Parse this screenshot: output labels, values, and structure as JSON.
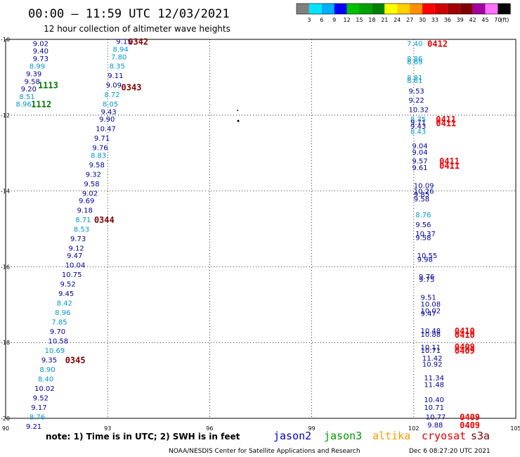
{
  "header": {
    "title": "00:00 – 11:59 UTC 12/03/2021",
    "subtitle": "12 hour collection of altimeter wave heights"
  },
  "color_scale": {
    "labels": [
      "3",
      "6",
      "9",
      "12",
      "15",
      "18",
      "21",
      "24",
      "27",
      "30",
      "33",
      "36",
      "39",
      "42",
      "45",
      "70",
      "(ft)"
    ],
    "colors": [
      "#808080",
      "#00e5ff",
      "#00b0ff",
      "#0000ff",
      "#00c000",
      "#00a000",
      "#008000",
      "#ffff00",
      "#ffd000",
      "#ff9000",
      "#ff0000",
      "#d00000",
      "#a00000",
      "#800000",
      "#a000a0",
      "#ff70ff",
      "#000000"
    ]
  },
  "footer": {
    "note": "note: 1) Time is in UTC; 2) SWH is in feet",
    "satellites": [
      {
        "name": "jason2",
        "color": "#0000cc"
      },
      {
        "name": "jason3",
        "color": "#009900"
      },
      {
        "name": "altika",
        "color": "#ff9900"
      },
      {
        "name": "cryosat",
        "color": "#e00000"
      },
      {
        "name": "s3a",
        "color": "#800000"
      }
    ],
    "credit": "NOAA/NESDIS Center for Satellite Applications and Research",
    "timestamp": "Dec  6 08:27:20 UTC 2021"
  },
  "chart_data": {
    "type": "scatter",
    "xlim": [
      90,
      105
    ],
    "ylim": [
      -20,
      -10
    ],
    "x_ticks": [
      90,
      93,
      96,
      99,
      102,
      105
    ],
    "x_tick_labels": [
      "90",
      "93",
      "96",
      "99",
      "102",
      "105"
    ],
    "y_ticks": [
      -10,
      -12,
      -14,
      -16,
      -18,
      -20
    ],
    "y_tick_labels": [
      "-10",
      "-12",
      "-14",
      "-16",
      "-18",
      "-20"
    ],
    "grid": true,
    "colors": {
      "blue": "#000099",
      "cyan": "#0099cc",
      "green": "#007700",
      "maroon": "#800000",
      "red": "#ee0000"
    },
    "wave_heights": [
      {
        "x": 90.8,
        "y": -10.1,
        "label": "9.02",
        "c": "blue"
      },
      {
        "x": 90.8,
        "y": -10.3,
        "label": "9.40",
        "c": "blue"
      },
      {
        "x": 90.8,
        "y": -10.5,
        "label": "9.73",
        "c": "blue"
      },
      {
        "x": 90.7,
        "y": -10.7,
        "label": "8.99",
        "c": "cyan"
      },
      {
        "x": 90.6,
        "y": -10.9,
        "label": "9.39",
        "c": "blue"
      },
      {
        "x": 90.55,
        "y": -11.1,
        "label": "9.58",
        "c": "blue"
      },
      {
        "x": 90.45,
        "y": -11.3,
        "label": "9.20",
        "c": "blue"
      },
      {
        "x": 90.4,
        "y": -11.5,
        "label": "8.51",
        "c": "cyan"
      },
      {
        "x": 90.3,
        "y": -11.7,
        "label": "8.96",
        "c": "cyan"
      },
      {
        "x": 93.25,
        "y": -10.05,
        "label": "9.15",
        "c": "blue"
      },
      {
        "x": 93.15,
        "y": -10.25,
        "label": "8.94",
        "c": "cyan"
      },
      {
        "x": 93.1,
        "y": -10.45,
        "label": "7.80",
        "c": "cyan"
      },
      {
        "x": 93.05,
        "y": -10.7,
        "label": "8.35",
        "c": "cyan"
      },
      {
        "x": 93.0,
        "y": -10.95,
        "label": "9.11",
        "c": "blue"
      },
      {
        "x": 92.95,
        "y": -11.2,
        "label": "9.09",
        "c": "blue"
      },
      {
        "x": 92.9,
        "y": -11.45,
        "label": "8.72",
        "c": "cyan"
      },
      {
        "x": 92.85,
        "y": -11.7,
        "label": "8.05",
        "c": "cyan"
      },
      {
        "x": 92.8,
        "y": -11.9,
        "label": "9.43",
        "c": "blue"
      },
      {
        "x": 92.75,
        "y": -12.1,
        "label": "9.90",
        "c": "blue"
      },
      {
        "x": 92.65,
        "y": -12.35,
        "label": "10.47",
        "c": "blue"
      },
      {
        "x": 92.6,
        "y": -12.6,
        "label": "9.71",
        "c": "blue"
      },
      {
        "x": 92.55,
        "y": -12.85,
        "label": "9.76",
        "c": "blue"
      },
      {
        "x": 92.5,
        "y": -13.05,
        "label": "8.83",
        "c": "cyan"
      },
      {
        "x": 92.45,
        "y": -13.3,
        "label": "9.58",
        "c": "blue"
      },
      {
        "x": 92.35,
        "y": -13.55,
        "label": "9.32",
        "c": "blue"
      },
      {
        "x": 92.3,
        "y": -13.8,
        "label": "9.58",
        "c": "blue"
      },
      {
        "x": 92.25,
        "y": -14.05,
        "label": "9.02",
        "c": "blue"
      },
      {
        "x": 92.15,
        "y": -14.25,
        "label": "9.69",
        "c": "blue"
      },
      {
        "x": 92.1,
        "y": -14.5,
        "label": "9.18",
        "c": "blue"
      },
      {
        "x": 92.05,
        "y": -14.75,
        "label": "8.71",
        "c": "cyan"
      },
      {
        "x": 92.0,
        "y": -15.0,
        "label": "8.53",
        "c": "cyan"
      },
      {
        "x": 91.9,
        "y": -15.25,
        "label": "9.73",
        "c": "blue"
      },
      {
        "x": 91.85,
        "y": -15.5,
        "label": "9.12",
        "c": "blue"
      },
      {
        "x": 91.8,
        "y": -15.7,
        "label": "9.47",
        "c": "blue"
      },
      {
        "x": 91.75,
        "y": -15.95,
        "label": "10.04",
        "c": "blue"
      },
      {
        "x": 91.65,
        "y": -16.2,
        "label": "10.75",
        "c": "blue"
      },
      {
        "x": 91.6,
        "y": -16.45,
        "label": "9.52",
        "c": "blue"
      },
      {
        "x": 91.55,
        "y": -16.7,
        "label": "9.45",
        "c": "blue"
      },
      {
        "x": 91.5,
        "y": -16.95,
        "label": "8.42",
        "c": "cyan"
      },
      {
        "x": 91.45,
        "y": -17.2,
        "label": "8.96",
        "c": "cyan"
      },
      {
        "x": 91.35,
        "y": -17.45,
        "label": "7.85",
        "c": "cyan"
      },
      {
        "x": 91.3,
        "y": -17.7,
        "label": "9.70",
        "c": "blue"
      },
      {
        "x": 91.25,
        "y": -17.95,
        "label": "10.58",
        "c": "blue"
      },
      {
        "x": 91.15,
        "y": -18.2,
        "label": "10.69",
        "c": "cyan"
      },
      {
        "x": 91.05,
        "y": -18.45,
        "label": "9.35",
        "c": "blue"
      },
      {
        "x": 91.0,
        "y": -18.7,
        "label": "8.90",
        "c": "cyan"
      },
      {
        "x": 90.95,
        "y": -18.95,
        "label": "8.40",
        "c": "cyan"
      },
      {
        "x": 90.85,
        "y": -19.2,
        "label": "10.02",
        "c": "blue"
      },
      {
        "x": 90.8,
        "y": -19.45,
        "label": "9.52",
        "c": "blue"
      },
      {
        "x": 90.75,
        "y": -19.7,
        "label": "9.17",
        "c": "blue"
      },
      {
        "x": 90.7,
        "y": -19.95,
        "label": "8.76",
        "c": "cyan"
      },
      {
        "x": 90.6,
        "y": -20.2,
        "label": "9.21",
        "c": "blue"
      },
      {
        "x": 101.8,
        "y": -10.1,
        "label": "7.40",
        "c": "cyan"
      },
      {
        "x": 101.8,
        "y": -10.5,
        "label": "8.86",
        "c": "cyan"
      },
      {
        "x": 101.8,
        "y": -10.58,
        "label": "8.69",
        "c": "cyan"
      },
      {
        "x": 101.8,
        "y": -11.0,
        "label": "8.81",
        "c": "cyan"
      },
      {
        "x": 101.8,
        "y": -11.08,
        "label": "8.61",
        "c": "cyan"
      },
      {
        "x": 101.85,
        "y": -11.35,
        "label": "9.53",
        "c": "blue"
      },
      {
        "x": 101.85,
        "y": -11.6,
        "label": "9.22",
        "c": "blue"
      },
      {
        "x": 101.85,
        "y": -11.85,
        "label": "10.32",
        "c": "blue"
      },
      {
        "x": 101.9,
        "y": -12.1,
        "label": "8.75",
        "c": "cyan"
      },
      {
        "x": 101.9,
        "y": -12.18,
        "label": "9.71",
        "c": "blue"
      },
      {
        "x": 101.9,
        "y": -12.28,
        "label": "9.43",
        "c": "blue"
      },
      {
        "x": 101.9,
        "y": -12.42,
        "label": "8.43",
        "c": "cyan"
      },
      {
        "x": 101.95,
        "y": -12.8,
        "label": "9.04",
        "c": "blue"
      },
      {
        "x": 101.95,
        "y": -12.97,
        "label": "9.04",
        "c": "blue"
      },
      {
        "x": 101.95,
        "y": -13.2,
        "label": "9.57",
        "c": "blue"
      },
      {
        "x": 101.95,
        "y": -13.38,
        "label": "9.61",
        "c": "blue"
      },
      {
        "x": 102.0,
        "y": -13.85,
        "label": "10.09",
        "c": "blue"
      },
      {
        "x": 102.0,
        "y": -14.0,
        "label": "10.26",
        "c": "blue"
      },
      {
        "x": 102.0,
        "y": -14.08,
        "label": "9.85",
        "c": "blue"
      },
      {
        "x": 102.0,
        "y": -14.2,
        "label": "9.58",
        "c": "blue"
      },
      {
        "x": 102.05,
        "y": -14.62,
        "label": "8.76",
        "c": "cyan"
      },
      {
        "x": 102.05,
        "y": -14.88,
        "label": "9.56",
        "c": "blue"
      },
      {
        "x": 102.05,
        "y": -15.12,
        "label": "10.37",
        "c": "blue"
      },
      {
        "x": 102.05,
        "y": -15.22,
        "label": "9.58",
        "c": "blue"
      },
      {
        "x": 102.1,
        "y": -15.7,
        "label": "10.55",
        "c": "blue"
      },
      {
        "x": 102.1,
        "y": -15.8,
        "label": "9.98",
        "c": "blue"
      },
      {
        "x": 102.15,
        "y": -16.25,
        "label": "9.76",
        "c": "blue"
      },
      {
        "x": 102.15,
        "y": -16.33,
        "label": "9.75",
        "c": "blue"
      },
      {
        "x": 102.2,
        "y": -16.8,
        "label": "9.51",
        "c": "blue"
      },
      {
        "x": 102.2,
        "y": -16.98,
        "label": "10.08",
        "c": "blue"
      },
      {
        "x": 102.2,
        "y": -17.15,
        "label": "10.02",
        "c": "blue"
      },
      {
        "x": 102.2,
        "y": -17.23,
        "label": "9.47",
        "c": "blue"
      },
      {
        "x": 102.2,
        "y": -17.68,
        "label": "10.48",
        "c": "blue"
      },
      {
        "x": 102.2,
        "y": -17.77,
        "label": "10.88",
        "c": "blue"
      },
      {
        "x": 102.2,
        "y": -18.12,
        "label": "10.11",
        "c": "blue"
      },
      {
        "x": 102.2,
        "y": -18.2,
        "label": "10.71",
        "c": "blue"
      },
      {
        "x": 102.25,
        "y": -18.4,
        "label": "11.42",
        "c": "blue"
      },
      {
        "x": 102.25,
        "y": -18.56,
        "label": "10.92",
        "c": "blue"
      },
      {
        "x": 102.3,
        "y": -18.92,
        "label": "11.34",
        "c": "blue"
      },
      {
        "x": 102.3,
        "y": -19.1,
        "label": "11.48",
        "c": "blue"
      },
      {
        "x": 102.3,
        "y": -19.5,
        "label": "10.40",
        "c": "blue"
      },
      {
        "x": 102.3,
        "y": -19.7,
        "label": "10.71",
        "c": "blue"
      },
      {
        "x": 102.35,
        "y": -19.95,
        "label": "10.77",
        "c": "blue"
      },
      {
        "x": 102.4,
        "y": -20.17,
        "label": "9.88",
        "c": "blue"
      }
    ],
    "pass_times": [
      {
        "x": 90.95,
        "y": -11.2,
        "label": "1113",
        "c": "green"
      },
      {
        "x": 90.75,
        "y": -11.7,
        "label": "1112",
        "c": "green"
      },
      {
        "x": 93.6,
        "y": -10.05,
        "label": "0342",
        "c": "maroon"
      },
      {
        "x": 93.4,
        "y": -11.25,
        "label": "0343",
        "c": "maroon"
      },
      {
        "x": 92.6,
        "y": -14.75,
        "label": "0344",
        "c": "maroon"
      },
      {
        "x": 91.75,
        "y": -18.45,
        "label": "0345",
        "c": "maroon"
      },
      {
        "x": 102.4,
        "y": -10.1,
        "label": "0412",
        "c": "red"
      },
      {
        "x": 102.65,
        "y": -12.1,
        "label": "0411",
        "c": "red"
      },
      {
        "x": 102.65,
        "y": -12.2,
        "label": "0411",
        "c": "red"
      },
      {
        "x": 102.75,
        "y": -13.2,
        "label": "0411",
        "c": "red"
      },
      {
        "x": 102.75,
        "y": -13.32,
        "label": "0411",
        "c": "red"
      },
      {
        "x": 103.2,
        "y": -17.68,
        "label": "0410",
        "c": "red"
      },
      {
        "x": 103.2,
        "y": -17.78,
        "label": "0410",
        "c": "red"
      },
      {
        "x": 103.2,
        "y": -18.1,
        "label": "0409",
        "c": "red"
      },
      {
        "x": 103.2,
        "y": -18.2,
        "label": "0409",
        "c": "red"
      },
      {
        "x": 103.35,
        "y": -19.95,
        "label": "0409",
        "c": "red"
      },
      {
        "x": 103.35,
        "y": -20.17,
        "label": "0409",
        "c": "red"
      }
    ]
  }
}
